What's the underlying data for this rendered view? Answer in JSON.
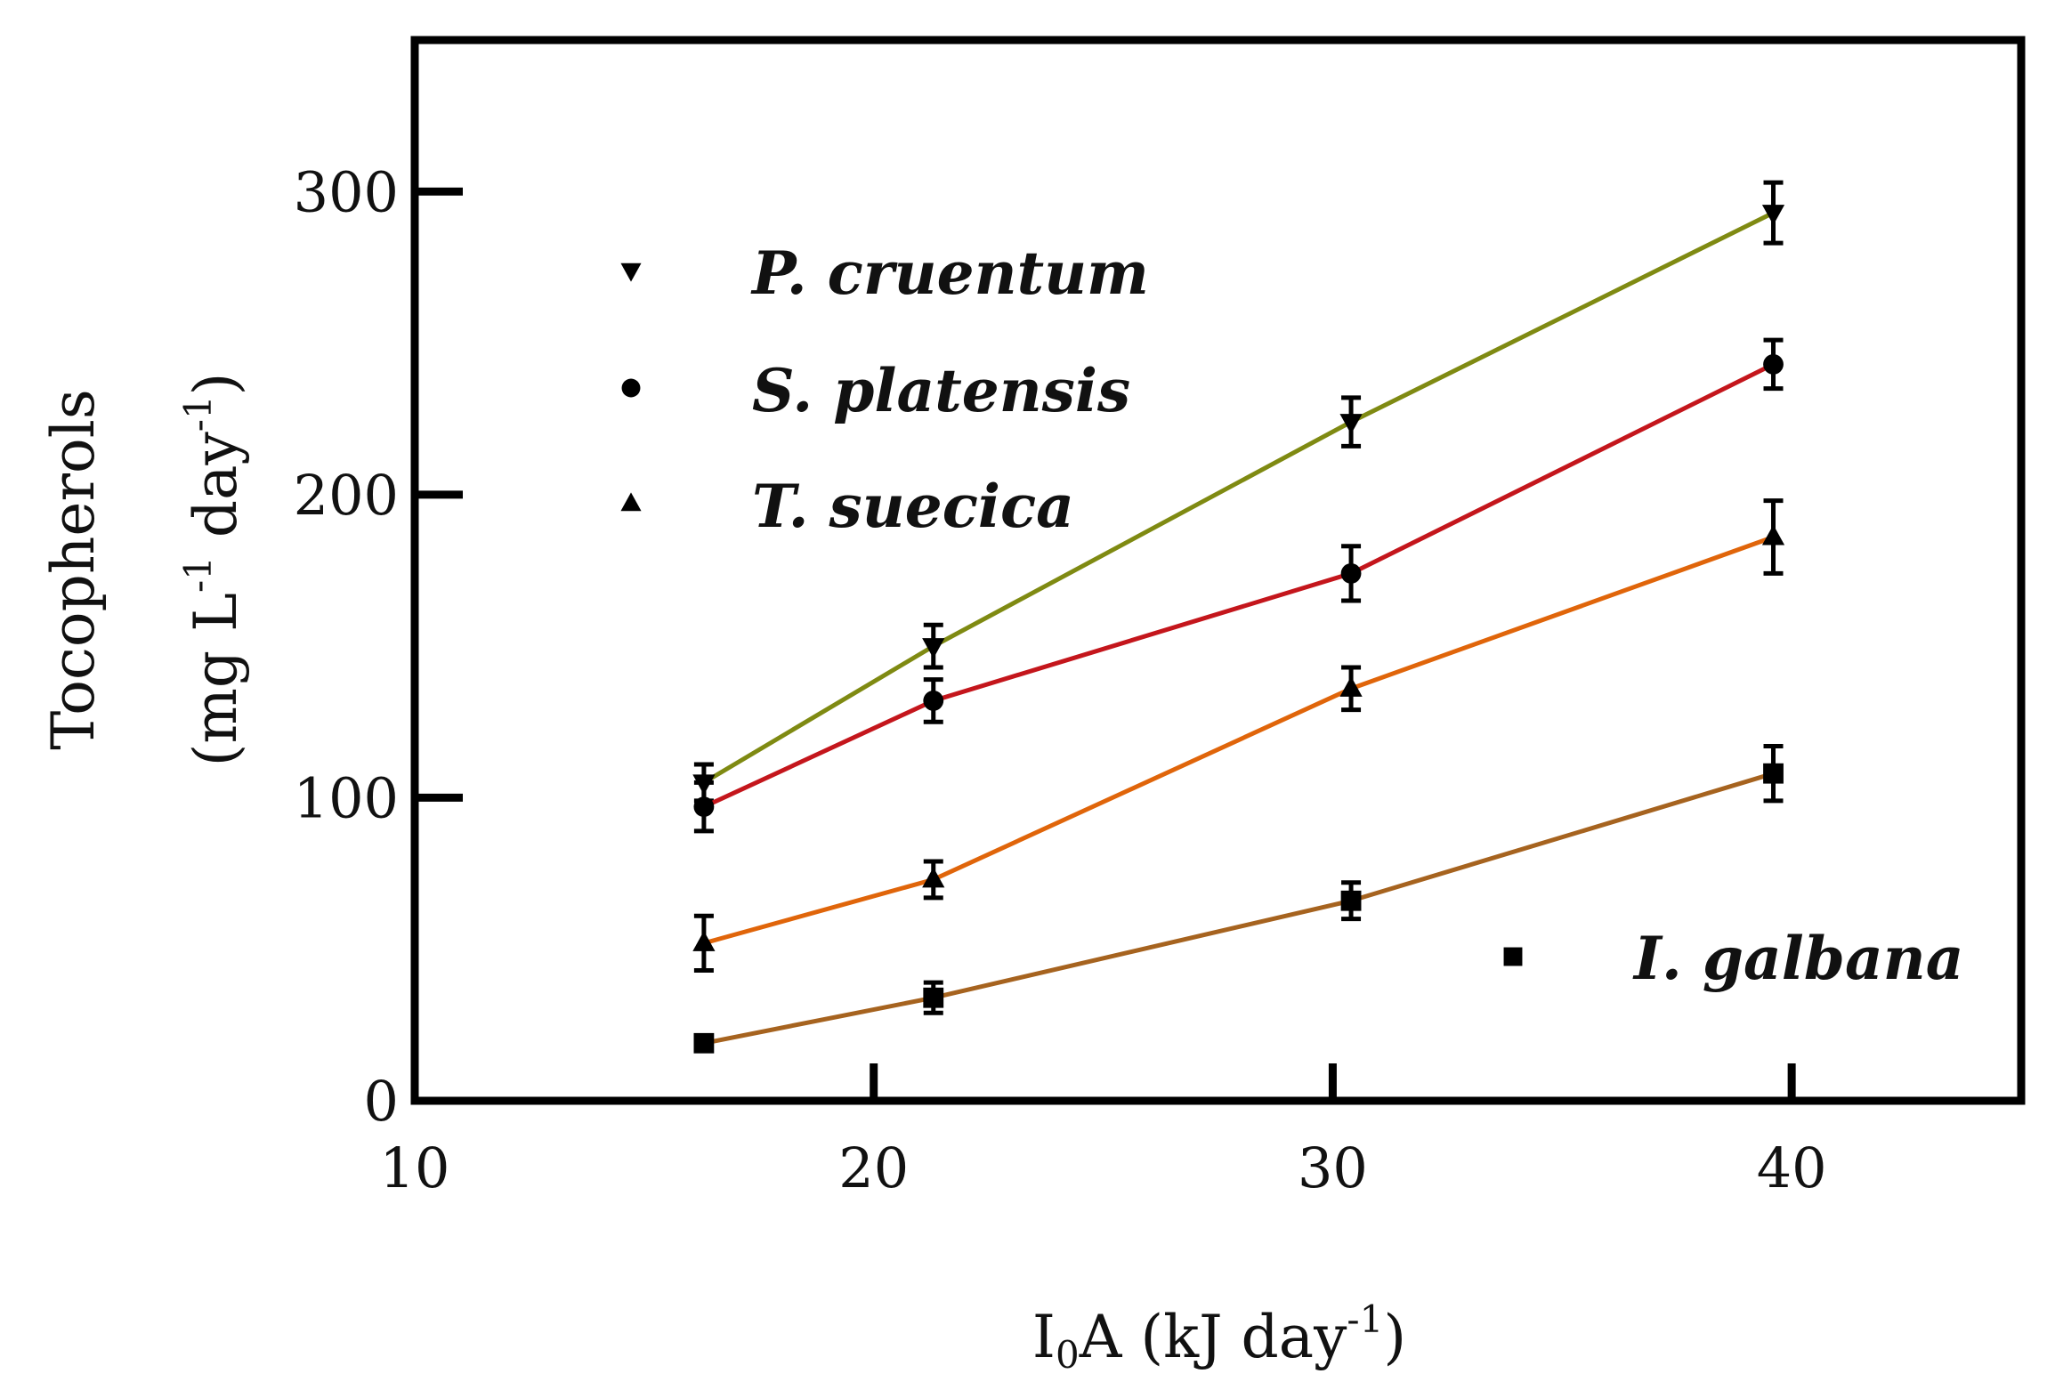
{
  "chart_data": {
    "type": "line",
    "title": "",
    "xlabel": {
      "main": "I",
      "sub": "0",
      "rest": "A (kJ day",
      "sup": "-1",
      "close": ")"
    },
    "ylabel": {
      "line1": "Tocopherols",
      "line2_a": "(mg L",
      "line2_sup1": "-1",
      "line2_b": " day",
      "line2_sup2": "-1",
      "line2_c": ")"
    },
    "xlim": [
      10,
      45
    ],
    "ylim": [
      0,
      350
    ],
    "x_ticks": [
      10,
      20,
      30,
      40
    ],
    "x_tick_labels": [
      "10",
      "20",
      "30",
      "40"
    ],
    "y_ticks": [
      0,
      100,
      200,
      300
    ],
    "y_tick_labels": [
      "0",
      "100",
      "200",
      "300"
    ],
    "grid": false,
    "series": [
      {
        "name": "P. cruentum",
        "marker": "triangle-down",
        "color": "#7f8a12",
        "x": [
          16.3,
          21.3,
          30.4,
          39.6
        ],
        "y": [
          105,
          150,
          224,
          293
        ],
        "error": [
          6,
          7,
          8,
          10
        ]
      },
      {
        "name": "S. platensis",
        "marker": "circle",
        "color": "#c4161c",
        "x": [
          16.3,
          21.3,
          30.4,
          39.6
        ],
        "y": [
          97,
          132,
          174,
          243
        ],
        "error": [
          8,
          7,
          9,
          8
        ]
      },
      {
        "name": "T. suecica",
        "marker": "triangle-up",
        "color": "#e0650a",
        "x": [
          16.3,
          21.3,
          30.4,
          39.6
        ],
        "y": [
          52,
          73,
          136,
          186
        ],
        "error": [
          9,
          6,
          7,
          12
        ]
      },
      {
        "name": "I. galbana",
        "marker": "square",
        "color": "#a6631f",
        "x": [
          16.3,
          21.3,
          30.4,
          39.6
        ],
        "y": [
          19,
          34,
          66,
          108
        ],
        "error": [
          0,
          5,
          6,
          9
        ]
      }
    ],
    "legend": {
      "placement": "upper-left",
      "entries": [
        "P. cruentum",
        "S. platensis",
        "T. suecica"
      ],
      "secondary_placement": "lower-right",
      "secondary_entries": [
        "I. galbana"
      ]
    }
  }
}
